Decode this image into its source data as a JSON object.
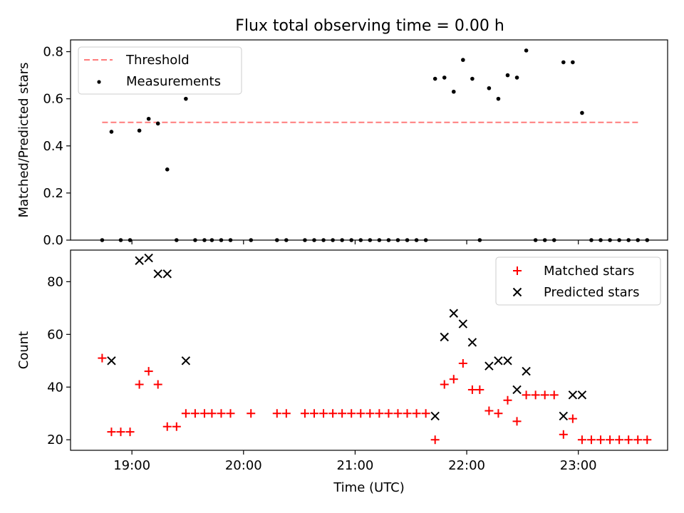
{
  "title": "Flux total observing time = 0.00 h",
  "chart_data": [
    {
      "type": "scatter",
      "ylabel": "Matched/Predicted stars",
      "xlabel": "",
      "xlim": [
        "18:27",
        "23:48"
      ],
      "ylim": [
        0,
        0.85
      ],
      "xticks": [
        "19:00",
        "20:00",
        "21:00",
        "22:00",
        "23:00"
      ],
      "yticks": [
        0.0,
        0.2,
        0.4,
        0.6,
        0.8
      ],
      "ytick_labels": [
        "0.0",
        "0.2",
        "0.4",
        "0.6",
        "0.8"
      ],
      "legend_position": "top-left",
      "threshold": {
        "name": "Threshold",
        "value": 0.5,
        "x": [
          "18:44",
          "23:33"
        ],
        "color": "#ff7b7b"
      },
      "series": [
        {
          "name": "Measurements",
          "color": "#000000",
          "points": [
            [
              "18:44",
              0.0
            ],
            [
              "18:49",
              0.46
            ],
            [
              "18:54",
              0.0
            ],
            [
              "18:59",
              0.0
            ],
            [
              "19:04",
              0.465
            ],
            [
              "19:09",
              0.515
            ],
            [
              "19:14",
              0.495
            ],
            [
              "19:19",
              0.3
            ],
            [
              "19:24",
              0.0
            ],
            [
              "19:29",
              0.6
            ],
            [
              "19:34",
              0.0
            ],
            [
              "19:39",
              0.0
            ],
            [
              "19:43",
              0.0
            ],
            [
              "19:48",
              0.0
            ],
            [
              "19:53",
              0.0
            ],
            [
              "20:04",
              0.0
            ],
            [
              "20:18",
              0.0
            ],
            [
              "20:23",
              0.0
            ],
            [
              "20:33",
              0.0
            ],
            [
              "20:38",
              0.0
            ],
            [
              "20:43",
              0.0
            ],
            [
              "20:48",
              0.0
            ],
            [
              "20:53",
              0.0
            ],
            [
              "20:58",
              0.0
            ],
            [
              "21:03",
              0.0
            ],
            [
              "21:08",
              0.0
            ],
            [
              "21:13",
              0.0
            ],
            [
              "21:18",
              0.0
            ],
            [
              "21:23",
              0.0
            ],
            [
              "21:28",
              0.0
            ],
            [
              "21:33",
              0.0
            ],
            [
              "21:38",
              0.0
            ],
            [
              "21:43",
              0.685
            ],
            [
              "21:48",
              0.69
            ],
            [
              "21:53",
              0.63
            ],
            [
              "21:58",
              0.765
            ],
            [
              "22:03",
              0.685
            ],
            [
              "22:07",
              0.0
            ],
            [
              "22:12",
              0.645
            ],
            [
              "22:17",
              0.6
            ],
            [
              "22:22",
              0.7
            ],
            [
              "22:27",
              0.69
            ],
            [
              "22:32",
              0.805
            ],
            [
              "22:37",
              0.0
            ],
            [
              "22:42",
              0.0
            ],
            [
              "22:47",
              0.0
            ],
            [
              "22:52",
              0.755
            ],
            [
              "22:57",
              0.755
            ],
            [
              "23:02",
              0.54
            ],
            [
              "23:07",
              0.0
            ],
            [
              "23:12",
              0.0
            ],
            [
              "23:17",
              0.0
            ],
            [
              "23:22",
              0.0
            ],
            [
              "23:27",
              0.0
            ],
            [
              "23:32",
              0.0
            ],
            [
              "23:37",
              0.0
            ]
          ]
        }
      ]
    },
    {
      "type": "scatter",
      "ylabel": "Count",
      "xlabel": "Time (UTC)",
      "xlim": [
        "18:27",
        "23:48"
      ],
      "ylim": [
        16,
        92
      ],
      "xticks": [
        "19:00",
        "20:00",
        "21:00",
        "22:00",
        "23:00"
      ],
      "yticks": [
        20,
        40,
        60,
        80
      ],
      "ytick_labels": [
        "20",
        "40",
        "60",
        "80"
      ],
      "legend_position": "top-right",
      "series": [
        {
          "name": "Matched stars",
          "marker": "plus",
          "color": "#ff0000",
          "points": [
            [
              "18:44",
              51
            ],
            [
              "18:49",
              23
            ],
            [
              "18:54",
              23
            ],
            [
              "18:59",
              23
            ],
            [
              "19:04",
              41
            ],
            [
              "19:09",
              46
            ],
            [
              "19:14",
              41
            ],
            [
              "19:19",
              25
            ],
            [
              "19:24",
              25
            ],
            [
              "19:29",
              30
            ],
            [
              "19:34",
              30
            ],
            [
              "19:39",
              30
            ],
            [
              "19:43",
              30
            ],
            [
              "19:48",
              30
            ],
            [
              "19:53",
              30
            ],
            [
              "20:04",
              30
            ],
            [
              "20:18",
              30
            ],
            [
              "20:23",
              30
            ],
            [
              "20:33",
              30
            ],
            [
              "20:38",
              30
            ],
            [
              "20:43",
              30
            ],
            [
              "20:48",
              30
            ],
            [
              "20:53",
              30
            ],
            [
              "20:58",
              30
            ],
            [
              "21:03",
              30
            ],
            [
              "21:08",
              30
            ],
            [
              "21:13",
              30
            ],
            [
              "21:18",
              30
            ],
            [
              "21:23",
              30
            ],
            [
              "21:28",
              30
            ],
            [
              "21:33",
              30
            ],
            [
              "21:38",
              30
            ],
            [
              "21:43",
              20
            ],
            [
              "21:48",
              41
            ],
            [
              "21:53",
              43
            ],
            [
              "21:58",
              49
            ],
            [
              "22:03",
              39
            ],
            [
              "22:07",
              39
            ],
            [
              "22:12",
              31
            ],
            [
              "22:17",
              30
            ],
            [
              "22:22",
              35
            ],
            [
              "22:27",
              27
            ],
            [
              "22:32",
              37
            ],
            [
              "22:37",
              37
            ],
            [
              "22:42",
              37
            ],
            [
              "22:47",
              37
            ],
            [
              "22:52",
              22
            ],
            [
              "22:57",
              28
            ],
            [
              "23:02",
              20
            ],
            [
              "23:07",
              20
            ],
            [
              "23:12",
              20
            ],
            [
              "23:17",
              20
            ],
            [
              "23:22",
              20
            ],
            [
              "23:27",
              20
            ],
            [
              "23:32",
              20
            ],
            [
              "23:37",
              20
            ]
          ]
        },
        {
          "name": "Predicted stars",
          "marker": "x",
          "color": "#000000",
          "points": [
            [
              "18:49",
              50
            ],
            [
              "19:04",
              88
            ],
            [
              "19:09",
              89
            ],
            [
              "19:14",
              83
            ],
            [
              "19:19",
              83
            ],
            [
              "19:29",
              50
            ],
            [
              "21:43",
              29
            ],
            [
              "21:48",
              59
            ],
            [
              "21:53",
              68
            ],
            [
              "21:58",
              64
            ],
            [
              "22:03",
              57
            ],
            [
              "22:12",
              48
            ],
            [
              "22:17",
              50
            ],
            [
              "22:22",
              50
            ],
            [
              "22:27",
              39
            ],
            [
              "22:32",
              46
            ],
            [
              "22:52",
              29
            ],
            [
              "22:57",
              37
            ],
            [
              "23:02",
              37
            ]
          ]
        }
      ]
    }
  ]
}
